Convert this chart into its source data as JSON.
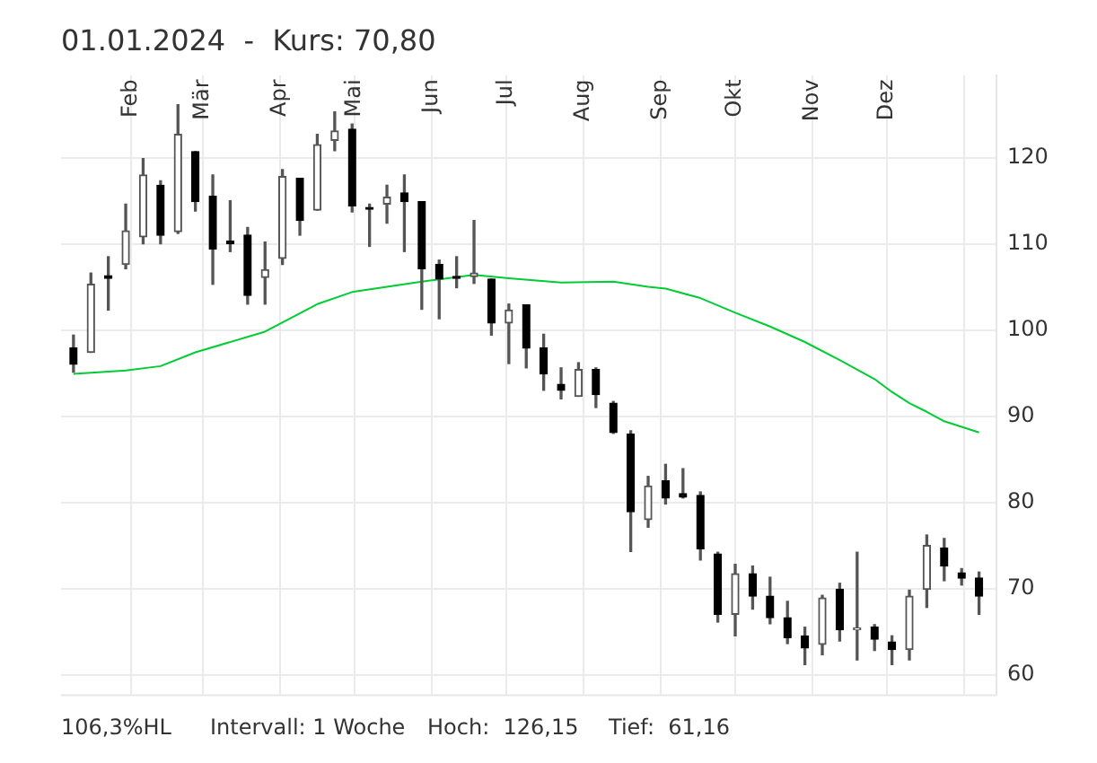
{
  "chart_data": {
    "type": "candlestick",
    "title": "01.01.2024  -  Kurs: 70,80",
    "x": [
      "2024-01-09",
      "2024-01-16",
      "2024-01-23",
      "2024-01-30",
      "2024-02-06",
      "2024-02-13",
      "2024-02-20",
      "2024-02-27",
      "2024-03-05",
      "2024-03-12",
      "2024-03-19",
      "2024-03-26",
      "2024-04-02",
      "2024-04-09",
      "2024-04-16",
      "2024-04-23",
      "2024-04-30",
      "2024-05-07",
      "2024-05-14",
      "2024-05-21",
      "2024-05-28",
      "2024-06-04",
      "2024-06-11",
      "2024-06-18",
      "2024-06-25",
      "2024-07-02",
      "2024-07-09",
      "2024-07-16",
      "2024-07-23",
      "2024-07-30",
      "2024-08-06",
      "2024-08-13",
      "2024-08-20",
      "2024-08-27",
      "2024-09-03",
      "2024-09-10",
      "2024-09-17",
      "2024-09-24",
      "2024-10-01",
      "2024-10-08",
      "2024-10-15",
      "2024-10-22",
      "2024-10-29",
      "2024-11-05",
      "2024-11-12",
      "2024-11-19",
      "2024-11-26",
      "2024-12-03",
      "2024-12-10",
      "2024-12-17",
      "2024-12-24",
      "2024-12-31",
      "2025-01-07"
    ],
    "ohlc": [
      [
        97.9,
        99.4,
        95.1,
        96.0
      ],
      [
        97.4,
        106.6,
        97.4,
        105.3
      ],
      [
        106.3,
        108.5,
        102.3,
        106.0
      ],
      [
        107.6,
        114.6,
        107.1,
        111.5
      ],
      [
        110.8,
        119.9,
        110.0,
        118.0
      ],
      [
        116.8,
        117.3,
        110.0,
        111.0
      ],
      [
        111.4,
        126.15,
        111.2,
        122.7
      ],
      [
        120.7,
        120.7,
        113.8,
        114.9
      ],
      [
        115.5,
        118.0,
        105.3,
        109.4
      ],
      [
        110.3,
        115.0,
        109.1,
        110.0
      ],
      [
        111.0,
        111.9,
        103.0,
        104.0
      ],
      [
        106.1,
        110.2,
        103.0,
        107.0
      ],
      [
        108.3,
        118.6,
        107.6,
        117.8
      ],
      [
        117.6,
        117.6,
        111.0,
        112.7
      ],
      [
        113.9,
        122.7,
        113.9,
        121.5
      ],
      [
        122.0,
        125.3,
        120.8,
        123.1
      ],
      [
        123.3,
        123.9,
        113.7,
        114.4
      ],
      [
        114.2,
        114.6,
        109.7,
        114.0
      ],
      [
        114.6,
        116.8,
        112.4,
        115.4
      ],
      [
        115.9,
        118.0,
        109.1,
        114.9
      ],
      [
        114.9,
        114.9,
        102.4,
        107.1
      ],
      [
        107.6,
        108.1,
        101.3,
        105.9
      ],
      [
        106.2,
        108.5,
        104.9,
        106.0
      ],
      [
        106.2,
        112.7,
        105.4,
        106.6
      ],
      [
        105.9,
        105.9,
        99.4,
        100.8
      ],
      [
        100.8,
        103.0,
        96.1,
        102.3
      ],
      [
        102.9,
        102.9,
        95.6,
        97.9
      ],
      [
        97.9,
        99.5,
        93.0,
        94.9
      ],
      [
        93.7,
        95.6,
        92.0,
        93.0
      ],
      [
        92.3,
        96.2,
        92.3,
        95.4
      ],
      [
        95.4,
        95.6,
        91.0,
        92.5
      ],
      [
        91.5,
        91.7,
        88.0,
        88.1
      ],
      [
        87.9,
        88.3,
        74.3,
        78.9
      ],
      [
        78.0,
        83.0,
        77.1,
        81.9
      ],
      [
        82.5,
        84.4,
        79.8,
        80.5
      ],
      [
        81.0,
        83.9,
        80.5,
        80.6
      ],
      [
        80.8,
        81.2,
        73.3,
        74.6
      ],
      [
        74.0,
        74.2,
        66.1,
        67.0
      ],
      [
        67.0,
        72.8,
        64.5,
        71.7
      ],
      [
        71.7,
        72.6,
        67.6,
        69.1
      ],
      [
        69.1,
        71.3,
        65.9,
        66.6
      ],
      [
        66.6,
        68.5,
        63.6,
        64.3
      ],
      [
        64.5,
        65.5,
        61.16,
        63.1
      ],
      [
        63.5,
        69.2,
        62.3,
        68.9
      ],
      [
        69.9,
        70.6,
        63.9,
        65.2
      ],
      [
        65.2,
        74.2,
        61.7,
        65.4
      ],
      [
        65.5,
        65.8,
        62.8,
        64.1
      ],
      [
        63.8,
        64.5,
        61.16,
        62.9
      ],
      [
        62.9,
        69.8,
        61.7,
        69.1
      ],
      [
        69.9,
        76.2,
        67.8,
        75.0
      ],
      [
        74.7,
        75.8,
        70.9,
        72.6
      ],
      [
        71.8,
        72.3,
        70.4,
        71.2
      ],
      [
        71.2,
        71.9,
        67.0,
        69.1
      ]
    ],
    "series": [
      {
        "type": "line",
        "color": "#00cc33",
        "x": [
          "2024-01-09",
          "2024-01-30",
          "2024-02-13",
          "2024-02-27",
          "2024-03-26",
          "2024-04-16",
          "2024-04-30",
          "2024-05-28",
          "2024-06-18",
          "2024-07-02",
          "2024-07-23",
          "2024-08-13",
          "2024-08-27",
          "2024-09-03",
          "2024-09-17",
          "2024-10-01",
          "2024-10-15",
          "2024-10-29",
          "2024-11-12",
          "2024-11-26",
          "2024-12-03",
          "2024-12-10",
          "2024-12-17",
          "2024-12-24",
          "2025-01-07"
        ],
        "values": [
          94.9,
          95.3,
          95.8,
          97.4,
          99.8,
          103.0,
          104.4,
          105.6,
          106.4,
          106.0,
          105.5,
          105.6,
          105.0,
          104.8,
          103.7,
          102.0,
          100.4,
          98.6,
          96.5,
          94.3,
          92.8,
          91.5,
          90.5,
          89.4,
          88.1
        ]
      }
    ],
    "xlim": [
      "2024-01-04",
      "2025-01-14"
    ],
    "xticks": [
      {
        "value": "2024-02-01",
        "label": "Feb"
      },
      {
        "value": "2024-03-01",
        "label": "Mär"
      },
      {
        "value": "2024-04-01",
        "label": "Apr"
      },
      {
        "value": "2024-05-01",
        "label": "Mai"
      },
      {
        "value": "2024-06-01",
        "label": "Jun"
      },
      {
        "value": "2024-07-01",
        "label": "Jul"
      },
      {
        "value": "2024-08-01",
        "label": "Aug"
      },
      {
        "value": "2024-09-01",
        "label": "Sep"
      },
      {
        "value": "2024-10-01",
        "label": "Okt"
      },
      {
        "value": "2024-11-01",
        "label": "Nov"
      },
      {
        "value": "2024-12-01",
        "label": "Dez"
      },
      {
        "value": "2025-01-01",
        "label": null
      }
    ],
    "ylim": [
      57.7,
      129.5
    ],
    "yticks": [
      60,
      70,
      80,
      90,
      100,
      110,
      120
    ],
    "grid": true,
    "annotations": [
      "106,3%HL",
      "Intervall: 1 Woche",
      "Hoch:  126,15",
      "Tief:  61,16"
    ]
  }
}
